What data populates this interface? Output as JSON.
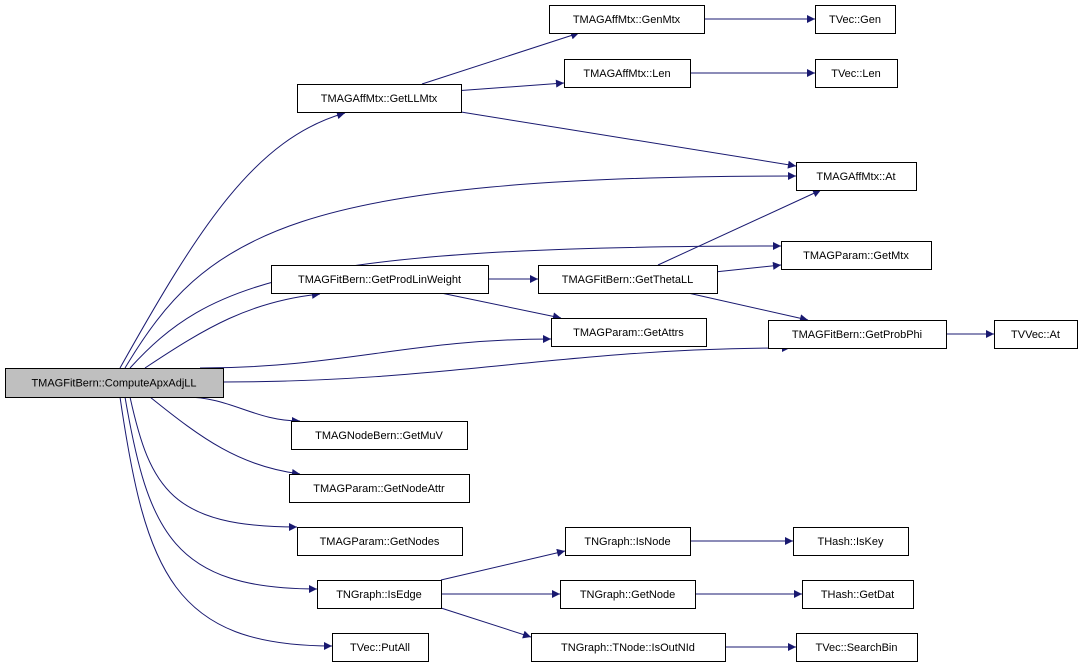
{
  "edge_color": "#191970",
  "root_fill": "#bfbfbf",
  "nodes": [
    {
      "id": "compute",
      "label": "TMAGFitBern::ComputeApxAdjLL",
      "root": true
    },
    {
      "id": "getllmtx",
      "label": "TMAGAffMtx::GetLLMtx"
    },
    {
      "id": "genmtx",
      "label": "TMAGAffMtx::GenMtx"
    },
    {
      "id": "tvecgen",
      "label": "TVec::Gen"
    },
    {
      "id": "len",
      "label": "TMAGAffMtx::Len"
    },
    {
      "id": "tveclen",
      "label": "TVec::Len"
    },
    {
      "id": "at",
      "label": "TMAGAffMtx::At"
    },
    {
      "id": "getmtx",
      "label": "TMAGParam::GetMtx"
    },
    {
      "id": "getprodlin",
      "label": "TMAGFitBern::GetProdLinWeight"
    },
    {
      "id": "getthetall",
      "label": "TMAGFitBern::GetThetaLL"
    },
    {
      "id": "getattrs",
      "label": "TMAGParam::GetAttrs"
    },
    {
      "id": "getprobphi",
      "label": "TMAGFitBern::GetProbPhi"
    },
    {
      "id": "tvvecat",
      "label": "TVVec::At"
    },
    {
      "id": "getmuv",
      "label": "TMAGNodeBern::GetMuV"
    },
    {
      "id": "getnodeattr",
      "label": "TMAGParam::GetNodeAttr"
    },
    {
      "id": "getnodes",
      "label": "TMAGParam::GetNodes"
    },
    {
      "id": "isedge",
      "label": "TNGraph::IsEdge"
    },
    {
      "id": "putall",
      "label": "TVec::PutAll"
    },
    {
      "id": "isnode",
      "label": "TNGraph::IsNode"
    },
    {
      "id": "iskey",
      "label": "THash::IsKey"
    },
    {
      "id": "getnode",
      "label": "TNGraph::GetNode"
    },
    {
      "id": "getdat",
      "label": "THash::GetDat"
    },
    {
      "id": "isoutnid",
      "label": "TNGraph::TNode::IsOutNId"
    },
    {
      "id": "searchbin",
      "label": "TVec::SearchBin"
    }
  ],
  "edges": [
    [
      "compute",
      "getllmtx"
    ],
    [
      "compute",
      "at"
    ],
    [
      "compute",
      "getmtx"
    ],
    [
      "compute",
      "getprodlin"
    ],
    [
      "compute",
      "getattrs"
    ],
    [
      "compute",
      "getprobphi"
    ],
    [
      "compute",
      "getmuv"
    ],
    [
      "compute",
      "getnodeattr"
    ],
    [
      "compute",
      "getnodes"
    ],
    [
      "compute",
      "isedge"
    ],
    [
      "compute",
      "putall"
    ],
    [
      "getllmtx",
      "genmtx"
    ],
    [
      "getllmtx",
      "len"
    ],
    [
      "getllmtx",
      "at"
    ],
    [
      "genmtx",
      "tvecgen"
    ],
    [
      "len",
      "tveclen"
    ],
    [
      "getprodlin",
      "getthetall"
    ],
    [
      "getprodlin",
      "getattrs"
    ],
    [
      "getthetall",
      "at"
    ],
    [
      "getthetall",
      "getmtx"
    ],
    [
      "getthetall",
      "getprobphi"
    ],
    [
      "getprobphi",
      "tvvecat"
    ],
    [
      "isedge",
      "isnode"
    ],
    [
      "isedge",
      "getnode"
    ],
    [
      "isedge",
      "isoutnid"
    ],
    [
      "isnode",
      "iskey"
    ],
    [
      "getnode",
      "getdat"
    ],
    [
      "isoutnid",
      "searchbin"
    ]
  ]
}
